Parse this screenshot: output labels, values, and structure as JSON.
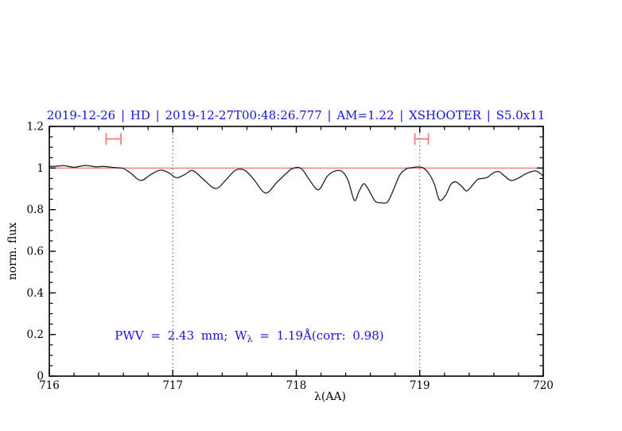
{
  "page": {
    "background": "#ffffff"
  },
  "chart_data": {
    "type": "line",
    "title": "2019-12-26 | HD | 2019-12-27T00:48:26.777 | AM=1.22 | XSHOOTER | S5.0x11",
    "title_color": "#1414dd",
    "xlabel": "λ(AA)",
    "ylabel": "norm. flux",
    "xlim": [
      716,
      720
    ],
    "ylim": [
      0,
      1.2
    ],
    "grid": "off",
    "x_ticks": {
      "major": [
        716,
        717,
        718,
        719,
        720
      ],
      "labels": [
        "716",
        "717",
        "718",
        "719",
        "720"
      ],
      "minor_step": 0.2
    },
    "y_ticks": {
      "major": [
        0,
        0.2,
        0.4,
        0.6,
        0.8,
        1,
        1.2
      ],
      "labels": [
        "0",
        "0.2",
        "0.4",
        "0.6",
        "0.8",
        "1",
        "1.2"
      ],
      "minor_step": 0.05
    },
    "reference_line": {
      "y": 1.0,
      "color": "#f08080"
    },
    "dotted_vlines": {
      "x": [
        717.0,
        719.0
      ],
      "color": "#3a3a3a"
    },
    "interval_markers": {
      "color": "#f0817f",
      "items": [
        {
          "x_start": 716.46,
          "x_end": 716.58,
          "y": 1.14,
          "cap_half_height": 0.028
        },
        {
          "x_start": 718.96,
          "x_end": 719.07,
          "y": 1.14,
          "cap_half_height": 0.028
        }
      ]
    },
    "annotation": {
      "prefix": "PWV = 2.43 mm; W",
      "subscript": "λ",
      "suffix": " = 1.19Å(corr: 0.98)",
      "full_text": "PWV = 2.43 mm; Wλ = 1.19Å(corr: 0.98)",
      "x": 716.53,
      "y": 0.175,
      "color": "#1414dd"
    },
    "series": [
      {
        "name": "normalized-spectrum",
        "color": "#1a1a1a",
        "x": [
          716.0,
          716.08,
          716.12,
          716.18,
          716.21,
          716.26,
          716.31,
          716.38,
          716.44,
          716.5,
          716.54,
          716.6,
          716.66,
          716.74,
          716.82,
          716.9,
          716.97,
          717.03,
          717.1,
          717.16,
          717.24,
          717.32,
          717.37,
          717.44,
          717.51,
          717.58,
          717.65,
          717.75,
          717.84,
          717.92,
          717.97,
          718.04,
          718.11,
          718.18,
          718.25,
          718.31,
          718.37,
          718.42,
          718.47,
          718.51,
          718.55,
          718.6,
          718.64,
          718.69,
          718.74,
          718.79,
          718.84,
          718.89,
          718.94,
          718.98,
          719.03,
          719.08,
          719.12,
          719.16,
          719.21,
          719.25,
          719.29,
          719.34,
          719.38,
          719.43,
          719.47,
          719.51,
          719.55,
          719.59,
          719.64,
          719.69,
          719.74,
          719.8,
          719.85,
          719.9,
          719.94,
          719.98,
          720.0
        ],
        "y": [
          1.008,
          1.01,
          1.012,
          1.005,
          1.004,
          1.01,
          1.012,
          1.006,
          1.008,
          1.004,
          1.002,
          0.998,
          0.975,
          0.94,
          0.968,
          0.99,
          0.976,
          0.953,
          0.97,
          0.988,
          0.95,
          0.908,
          0.906,
          0.95,
          0.99,
          0.99,
          0.95,
          0.88,
          0.93,
          0.975,
          0.998,
          0.998,
          0.94,
          0.896,
          0.96,
          0.985,
          0.984,
          0.94,
          0.845,
          0.89,
          0.925,
          0.88,
          0.84,
          0.833,
          0.838,
          0.9,
          0.968,
          0.996,
          1.002,
          1.005,
          1.0,
          0.968,
          0.92,
          0.846,
          0.87,
          0.92,
          0.934,
          0.912,
          0.89,
          0.92,
          0.946,
          0.95,
          0.956,
          0.975,
          0.983,
          0.96,
          0.94,
          0.952,
          0.97,
          0.982,
          0.986,
          0.972,
          0.96
        ]
      }
    ]
  }
}
